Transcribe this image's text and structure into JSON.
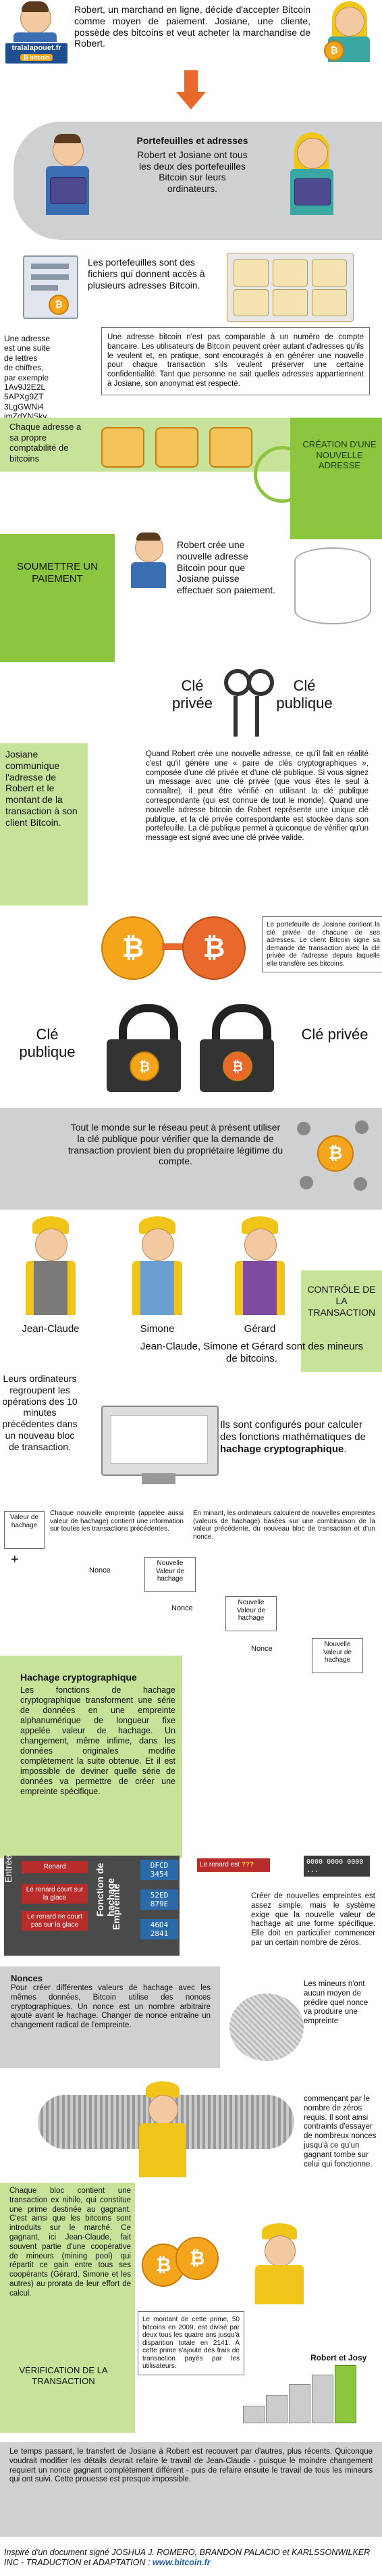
{
  "intro": {
    "logo_top": "tralalapouet.fr",
    "text": "Robert, un marchand en ligne, décide d'accepter Bitcoin comme moyen de paiement. Josiane, une cliente, possède des bitcoins et veut acheter la marchandise de Robert."
  },
  "wallets": {
    "title": "Portefeuilles et adresses",
    "text": "Robert et Josiane ont tous les deux des portefeuilles Bitcoin sur leurs ordinateurs."
  },
  "files": {
    "text": "Les portefeuilles sont des fichiers qui donnent accès à plusieurs adresses Bitcoin."
  },
  "address": {
    "left": "Une adresse est une suite de lettres de chiffres, par exemple 1Av9J2E2L5AP Xg9ZT3LgGWNi4imZdYNSky",
    "left_lines": [
      "Une adresse",
      "est une suite",
      "de lettres",
      "de chiffres,",
      "par exemple",
      "1Av9J2E2L",
      "5APXg9ZT",
      "3LgGWNi4",
      "imZdYNSky"
    ],
    "box": "Une adresse bitcoin n'est pas comparable à un numéro de compte bancaire. Les utilisateurs de Bitcoin peuvent créer autant d'adresses qu'ils le veulent et, en pratique, sont encouragés à en générer une nouvelle pour chaque transaction s'ils veulent préserver une certaine confidentialité. Tant que personne ne sait quelles adresses appartiennent à Josiane, son anonymat est respecté."
  },
  "ledger": {
    "left": "Chaque adresse a sa propre comptabilité de bitcoins",
    "right": "CRÉATION D'UNE NOUVELLE ADRESSE"
  },
  "submit": {
    "left": "SOUMETTRE UN PAIEMENT",
    "text": "Robert crée une nouvelle adresse Bitcoin pour que Josiane puisse effectuer son paiement."
  },
  "keys": {
    "private_label": "Clé privée",
    "public_label": "Clé publique",
    "left": "Josiane communique l'adresse de Robert et le montant de la transaction à son client Bitcoin.",
    "text": "Quand Robert crée une nouvelle adresse, ce qu'il fait en réalité c'est qu'il génère une « paire de clés cryptographiques », composée d'une clé privée et d'une clé publique. Si vous signez un message avec une clé privée (que vous êtes le seul à connaître), il peut être vérifié en utilisant la clé publique correspondante (qui est connue de tout le monde). Quand une nouvelle adresse bitcoin de Robert représente une unique clé publique, et la clé privée correspondante est stockée dans son portefeuille. La clé publique permet à quiconque de vérifier qu'un message est signé avec une clé privée valide."
  },
  "signing": {
    "text": "Le portefeuille de Josiane contient la clé privée de chacune de ses adresses. Le client Bitcoin signe sa demande de transaction avec la clé privée de l'adresse depuis laquelle elle transfère ses bitcoins."
  },
  "locks": {
    "public_label": "Clé publique",
    "private_label": "Clé privée"
  },
  "verify": {
    "text": "Tout le monde sur le réseau peut à présent utiliser la clé publique pour vérifier que la demande de transaction provient bien du propriétaire légitime du compte."
  },
  "miners": {
    "names": [
      "Jean-Claude",
      "Simone",
      "Gérard"
    ],
    "control": "CONTRÔLE DE LA TRANSACTION",
    "caption": "Jean-Claude, Simone et Gérard sont des mineurs de bitcoins."
  },
  "blocks": {
    "left": "Leurs ordinateurs regroupent les opérations des 10 minutes précédentes dans un nouveau bloc de transaction.",
    "right_prefix": "Ils sont configurés pour calculer des fonctions mathématiques de ",
    "right_bold": "hachage cryptographique",
    "right_suffix": "."
  },
  "hash_steps": {
    "old_hash": "Valeur de hachage",
    "note1": "Chaque nouvelle empreinte (appelée aussi valeur de hachage) contient une information sur toutes les transactions précédentes.",
    "note2": "En minant, les ordinateurs calculent de nouvelles empreintes (valeurs de hachage) basées sur une combinaison de la valeur précédente, du nouveau bloc de transaction et d'un nonce.",
    "nonce": "Nonce",
    "new_hash": "Nouvelle Valeur de hachage"
  },
  "hashing": {
    "title": "Hachage cryptographique",
    "text": "Les fonctions de hachage cryptographique transforment une série de données en une empreinte alphanumérique de longueur fixe appelée valeur de hachage. Un changement, même infime, dans les données originales modifie complètement la suite obtenue. Et il est impossible de deviner quelle série de données va permettre de créer une empreinte spécifique.",
    "input_label": "Entrée",
    "fn_label": "Fonction de hachage",
    "output_label": "Empreinte",
    "inputs": [
      "Renard",
      "Le renard court sur la glace",
      "Le renard ne court pas sur la glace"
    ],
    "outputs": [
      "DFCD 3454",
      "52ED 879E",
      "46D4 2841"
    ]
  },
  "target": {
    "input": "Le renard est",
    "unknown": "???",
    "output": "0000 0000 0000 ...",
    "text": "Créer de nouvelles empreintes est assez simple, mais le système exige que la nouvelle valeur de hachage ait une forme spécifique. Elle doit en particulier commencer par un certain nombre de zéros."
  },
  "nonces": {
    "title": "Nonces",
    "text": "Pour créer différentes valeurs de hachage avec les mêmes données, Bitcoin utilise des nonces cryptographiques. Un nonce est un nombre arbitraire ajouté avant le hachage. Changer de nonce entraîne un changement radical de l'empreinte.",
    "right": "Les mineurs n'ont aucun moyen de prédire quel nonce va produire une empreinte"
  },
  "race": {
    "text": "commençant par le nombre de zéros requis. Il sont ainsi contraints d'essayer de nombreux nonces jusqu'à ce qu'un gagnant tombe sur celui qui fonctionne."
  },
  "reward": {
    "left": "Chaque bloc contient une transaction ex nihilo, qui constitue une prime destinée au gagnant. C'est ainsi que les bitcoins sont introduits sur le marché. Ce gagnant, ici Jean-Claude, fait souvent partie d'une coopérative de mineurs (mining pool) qui répartit ce gain entre tous ses coopérants (Gérard, Simone et les autres) au prorata de leur effort de calcul.",
    "amount": "Le montant de cette prime, 50 bitcoins en 2009, est divisé par deux tous les quatre ans jusqu'à disparition totale en 2141. A cette prime s'ajoute des frais de transaction payés par les utilisateurs.",
    "verification": "VÉRIFICATION DE LA TRANSACTION",
    "pair": "Robert et Josy"
  },
  "final": {
    "text": "Le temps passant, le transfert de Josiane à Robert est recouvert par d'autres, plus récents. Quiconque voudrait modifier les détails devrait refaire le travail de Jean-Claude - puisque le moindre changement requiert un nonce gagnant complètement différent - puis de refaire ensuite le travail de tous les mineurs qui ont suivi. Cette prouesse est presque impossible."
  },
  "credit": {
    "text": "Inspiré d'un document signé JOSHUA J. ROMERO, BRANDON PALACIO et KARLSSONWILKER INC - TRADUCTION et ADAPTATION : ",
    "site": "www.bitcoin.fr"
  },
  "colors": {
    "orange": "#e8692b",
    "gold": "#f4a51c",
    "green": "#8cc63f",
    "gray": "#cfd0d2",
    "blue": "#1c5fa8"
  }
}
